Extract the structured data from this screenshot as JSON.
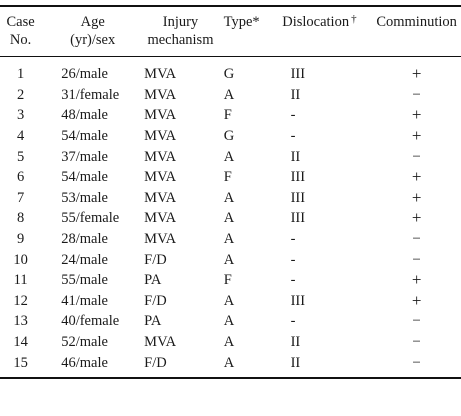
{
  "table": {
    "headers": {
      "case_line1": "Case",
      "case_line2": "No.",
      "age_line1": "Age",
      "age_line2": "(yr)/sex",
      "injury_line1": "Injury",
      "injury_line2": "mechanism",
      "type": "Type*",
      "dislocation": "Dislocation",
      "dislocation_mark": "†",
      "comminution": "Comminution"
    },
    "rows": [
      {
        "case": "1",
        "age_sex": "26/male",
        "mechanism": "MVA",
        "type": "G",
        "dislocation": "III",
        "comminution": "+"
      },
      {
        "case": "2",
        "age_sex": "31/female",
        "mechanism": "MVA",
        "type": "A",
        "dislocation": "II",
        "comminution": "−"
      },
      {
        "case": "3",
        "age_sex": "48/male",
        "mechanism": "MVA",
        "type": "F",
        "dislocation": "-",
        "comminution": "+"
      },
      {
        "case": "4",
        "age_sex": "54/male",
        "mechanism": "MVA",
        "type": "G",
        "dislocation": "-",
        "comminution": "+"
      },
      {
        "case": "5",
        "age_sex": "37/male",
        "mechanism": "MVA",
        "type": "A",
        "dislocation": "II",
        "comminution": "−"
      },
      {
        "case": "6",
        "age_sex": "54/male",
        "mechanism": "MVA",
        "type": "F",
        "dislocation": "III",
        "comminution": "+"
      },
      {
        "case": "7",
        "age_sex": "53/male",
        "mechanism": "MVA",
        "type": "A",
        "dislocation": "III",
        "comminution": "+"
      },
      {
        "case": "8",
        "age_sex": "55/female",
        "mechanism": "MVA",
        "type": "A",
        "dislocation": "III",
        "comminution": "+"
      },
      {
        "case": "9",
        "age_sex": "28/male",
        "mechanism": "MVA",
        "type": "A",
        "dislocation": "-",
        "comminution": "−"
      },
      {
        "case": "10",
        "age_sex": "24/male",
        "mechanism": "F/D",
        "type": "A",
        "dislocation": "-",
        "comminution": "−"
      },
      {
        "case": "11",
        "age_sex": "55/male",
        "mechanism": "PA",
        "type": "F",
        "dislocation": "-",
        "comminution": "+"
      },
      {
        "case": "12",
        "age_sex": "41/male",
        "mechanism": "F/D",
        "type": "A",
        "dislocation": "III",
        "comminution": "+"
      },
      {
        "case": "13",
        "age_sex": "40/female",
        "mechanism": "PA",
        "type": "A",
        "dislocation": "-",
        "comminution": "−"
      },
      {
        "case": "14",
        "age_sex": "52/male",
        "mechanism": "MVA",
        "type": "A",
        "dislocation": "II",
        "comminution": "−"
      },
      {
        "case": "15",
        "age_sex": "46/male",
        "mechanism": "F/D",
        "type": "A",
        "dislocation": "II",
        "comminution": "−"
      }
    ]
  }
}
